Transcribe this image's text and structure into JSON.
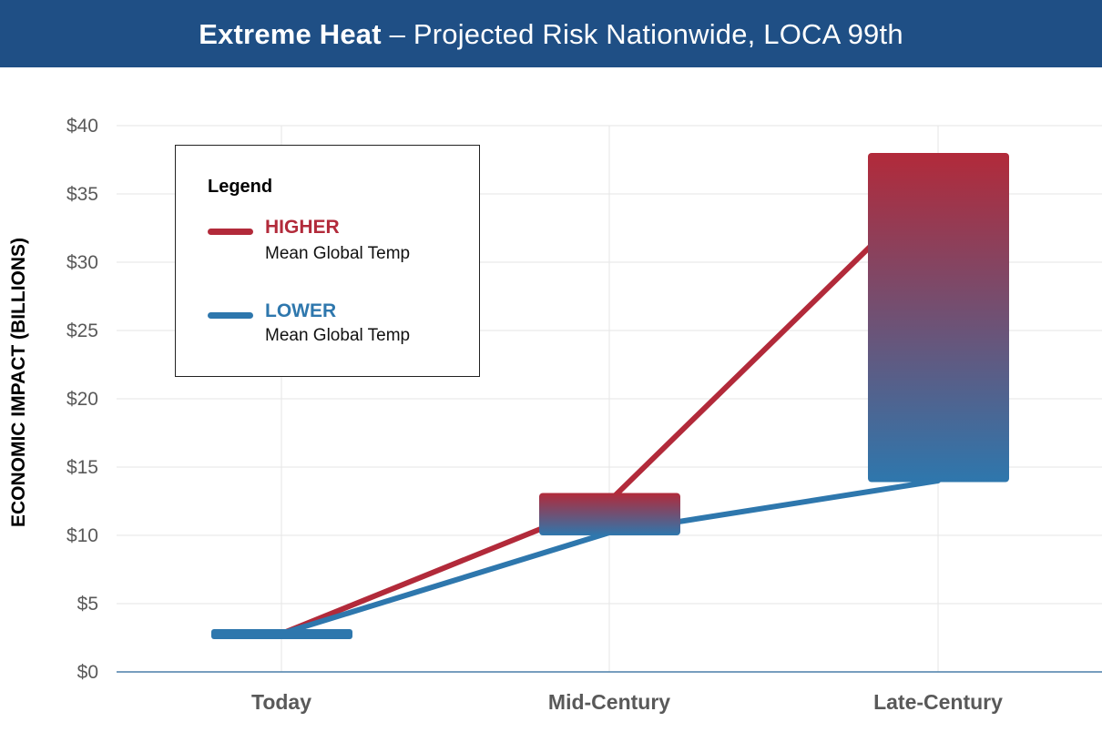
{
  "header": {
    "title_bold": "Extreme Heat",
    "title_rest": " – Projected Risk Nationwide,  LOCA 99th"
  },
  "colors": {
    "header_bg": "#1f4f85",
    "higher": "#b22a3a",
    "lower": "#2e77ad"
  },
  "legend": {
    "title": "Legend",
    "items": [
      {
        "name": "HIGHER",
        "sub": "Mean Global Temp",
        "color": "#b22a3a"
      },
      {
        "name": "LOWER",
        "sub": "Mean Global Temp",
        "color": "#2e77ad"
      }
    ]
  },
  "chart_data": {
    "type": "line",
    "categories": [
      "Today",
      "Mid-Century",
      "Late-Century"
    ],
    "ylabel": "ECONOMIC IMPACT (BILLIONS)",
    "yticks": [
      "$0",
      "$5",
      "$10",
      "$15",
      "$20",
      "$25",
      "$30",
      "$35",
      "$40"
    ],
    "ylim": [
      0,
      40
    ],
    "grid": true,
    "legend_position": "top-left",
    "series": [
      {
        "name": "HIGHER",
        "values": [
          2.8,
          12.5,
          36
        ],
        "color": "#b22a3a"
      },
      {
        "name": "LOWER",
        "values": [
          2.8,
          10.2,
          14
        ],
        "color": "#2e77ad"
      }
    ],
    "ranges": [
      {
        "category": "Today",
        "low": 2.6,
        "high": 3.0
      },
      {
        "category": "Mid-Century",
        "low": 10.0,
        "high": 13.1
      },
      {
        "category": "Late-Century",
        "low": 13.9,
        "high": 38.0
      }
    ]
  }
}
